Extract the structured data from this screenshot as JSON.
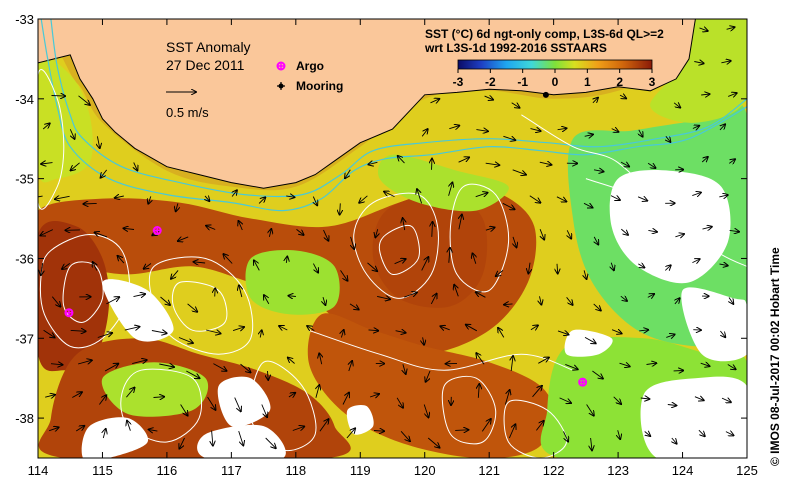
{
  "map": {
    "title": "SST Anomaly",
    "date": "27 Dec 2011",
    "vector_scale_label": "0.5 m/s",
    "product_line1": "SST (°C) 6d ngt-only comp, L3S-6d QL>=2",
    "product_line2": "wrt L3S-1d 1992-2016 SSTAARS",
    "credit": "© IMOS 08-Jul-2017 00:02 Hobart Time",
    "legend": {
      "argo": "Argo",
      "mooring": "Mooring"
    },
    "colors": {
      "land": "#fac79a",
      "coast": "#000000",
      "contour": "#ffffff",
      "shelf_contour": "#49c9d7",
      "argo": "#ff00ff",
      "mooring": "#000000",
      "nodata": "#ffffff"
    }
  },
  "chart_data": {
    "type": "heatmap",
    "xlim": [
      114,
      125
    ],
    "ylim": [
      -38.5,
      -33
    ],
    "x_ticks": [
      "114",
      "115",
      "116",
      "117",
      "118",
      "119",
      "120",
      "121",
      "122",
      "123",
      "124",
      "125"
    ],
    "y_ticks": [
      "-33",
      "-34",
      "-35",
      "-36",
      "-37",
      "-38"
    ],
    "colorbar": {
      "range": [
        -3,
        3
      ],
      "ticks": [
        "-3",
        "-2",
        "-1",
        "0",
        "1",
        "2",
        "3"
      ]
    },
    "argo_floats": [
      {
        "lon": 115.85,
        "lat": -35.65
      },
      {
        "lon": 114.48,
        "lat": -36.68
      },
      {
        "lon": 122.45,
        "lat": -37.55
      }
    ],
    "moorings": [
      {
        "lon": 121.88,
        "lat": -33.95
      }
    ],
    "coastline": [
      [
        114.0,
        -33.55
      ],
      [
        114.5,
        -33.45
      ],
      [
        114.55,
        -33.55
      ],
      [
        114.65,
        -33.75
      ],
      [
        114.85,
        -34.0
      ],
      [
        115.0,
        -34.25
      ],
      [
        115.2,
        -34.42
      ],
      [
        115.5,
        -34.62
      ],
      [
        116.0,
        -34.85
      ],
      [
        116.5,
        -34.95
      ],
      [
        117.0,
        -35.05
      ],
      [
        117.5,
        -35.12
      ],
      [
        118.0,
        -35.05
      ],
      [
        118.3,
        -34.95
      ],
      [
        118.65,
        -34.75
      ],
      [
        119.0,
        -34.55
      ],
      [
        119.5,
        -34.38
      ],
      [
        120.0,
        -33.95
      ],
      [
        120.5,
        -33.92
      ],
      [
        121.0,
        -33.88
      ],
      [
        121.5,
        -33.9
      ],
      [
        122.0,
        -33.95
      ],
      [
        122.5,
        -33.92
      ],
      [
        123.0,
        -33.85
      ],
      [
        123.5,
        -33.9
      ],
      [
        123.9,
        -33.75
      ],
      [
        124.1,
        -33.5
      ],
      [
        124.2,
        -33.0
      ]
    ],
    "anomaly_regions": [
      {
        "value": 0.8,
        "points": [
          [
            114,
            -33.55
          ],
          [
            114.6,
            -33.8
          ],
          [
            115.0,
            -34.3
          ],
          [
            116.0,
            -34.9
          ],
          [
            117.0,
            -35.1
          ],
          [
            118.0,
            -35.1
          ],
          [
            119.0,
            -34.6
          ],
          [
            120.0,
            -34.0
          ],
          [
            121.0,
            -33.9
          ],
          [
            122.0,
            -34.0
          ],
          [
            123.0,
            -33.9
          ],
          [
            124.1,
            -33.5
          ],
          [
            124.3,
            -33.0
          ],
          [
            125,
            -33.0
          ],
          [
            125,
            -38.5
          ],
          [
            114,
            -38.5
          ]
        ]
      },
      {
        "value": 2.4,
        "points": [
          [
            114.0,
            -35.4
          ],
          [
            115.0,
            -35.25
          ],
          [
            116.2,
            -35.3
          ],
          [
            117.3,
            -35.5
          ],
          [
            118.5,
            -35.6
          ],
          [
            119.6,
            -35.3
          ],
          [
            120.4,
            -35.1
          ],
          [
            121.2,
            -35.2
          ],
          [
            121.7,
            -35.6
          ],
          [
            121.6,
            -36.3
          ],
          [
            121.0,
            -36.9
          ],
          [
            120.0,
            -37.2
          ],
          [
            119.0,
            -37.0
          ],
          [
            118.2,
            -36.5
          ],
          [
            117.3,
            -36.3
          ],
          [
            116.4,
            -36.1
          ],
          [
            115.4,
            -36.2
          ],
          [
            114.6,
            -36.1
          ],
          [
            114.0,
            -36.0
          ]
        ]
      },
      {
        "value": 2.7,
        "points": [
          [
            114.0,
            -35.7
          ],
          [
            114.6,
            -35.6
          ],
          [
            115.0,
            -36.0
          ],
          [
            115.1,
            -36.6
          ],
          [
            114.9,
            -37.2
          ],
          [
            114.4,
            -37.4
          ],
          [
            114.0,
            -37.2
          ]
        ]
      },
      {
        "value": 2.5,
        "points": [
          [
            114.6,
            -37.2
          ],
          [
            115.6,
            -37.0
          ],
          [
            116.5,
            -37.2
          ],
          [
            117.4,
            -37.4
          ],
          [
            118.2,
            -37.7
          ],
          [
            118.6,
            -38.1
          ],
          [
            118.5,
            -38.5
          ],
          [
            114.4,
            -38.5
          ],
          [
            114.2,
            -38.0
          ]
        ]
      },
      {
        "value": 2.3,
        "points": [
          [
            118.4,
            -36.7
          ],
          [
            119.2,
            -36.9
          ],
          [
            120.0,
            -37.1
          ],
          [
            121.0,
            -37.3
          ],
          [
            121.8,
            -37.6
          ],
          [
            122.0,
            -38.0
          ],
          [
            121.7,
            -38.4
          ],
          [
            120.8,
            -38.5
          ],
          [
            119.6,
            -38.3
          ],
          [
            118.7,
            -37.9
          ],
          [
            118.2,
            -37.3
          ]
        ]
      },
      {
        "value": 2.5,
        "points": [
          [
            119.4,
            -35.4
          ],
          [
            120.3,
            -35.2
          ],
          [
            120.9,
            -35.5
          ],
          [
            120.9,
            -36.2
          ],
          [
            120.4,
            -36.6
          ],
          [
            119.6,
            -36.5
          ],
          [
            119.2,
            -36.0
          ]
        ]
      },
      {
        "value": 0.2,
        "points": [
          [
            117.3,
            -36.0
          ],
          [
            118.0,
            -35.9
          ],
          [
            118.6,
            -36.1
          ],
          [
            118.6,
            -36.6
          ],
          [
            117.9,
            -36.7
          ],
          [
            117.3,
            -36.5
          ]
        ]
      },
      {
        "value": 0.3,
        "points": [
          [
            115.0,
            -37.5
          ],
          [
            115.8,
            -37.3
          ],
          [
            116.6,
            -37.5
          ],
          [
            116.4,
            -37.9
          ],
          [
            115.4,
            -37.95
          ]
        ]
      },
      {
        "value": -0.2,
        "points": [
          [
            122.3,
            -34.5
          ],
          [
            123.2,
            -34.4
          ],
          [
            124.0,
            -34.3
          ],
          [
            125,
            -34.2
          ],
          [
            125,
            -37.0
          ],
          [
            124.2,
            -37.1
          ],
          [
            123.3,
            -36.9
          ],
          [
            122.6,
            -36.3
          ],
          [
            122.3,
            -35.5
          ]
        ]
      },
      {
        "value": 0.4,
        "points": [
          [
            123.6,
            -33.0
          ],
          [
            124.5,
            -33.0
          ],
          [
            125,
            -33.0
          ],
          [
            125,
            -34.0
          ],
          [
            124.2,
            -34.3
          ],
          [
            123.5,
            -34.1
          ],
          [
            123.9,
            -33.6
          ]
        ]
      },
      {
        "value": 0.1,
        "points": [
          [
            122.2,
            -37.1
          ],
          [
            123.4,
            -37.0
          ],
          [
            124.4,
            -37.2
          ],
          [
            125,
            -37.3
          ],
          [
            125,
            -38.5
          ],
          [
            122.1,
            -38.5
          ],
          [
            121.9,
            -37.9
          ]
        ]
      },
      {
        "value": 0.5,
        "points": [
          [
            114.0,
            -33.55
          ],
          [
            114.5,
            -33.7
          ],
          [
            114.8,
            -34.2
          ],
          [
            114.8,
            -34.8
          ],
          [
            114.3,
            -35.0
          ],
          [
            114.0,
            -34.9
          ]
        ]
      },
      {
        "value": 0.3,
        "points": [
          [
            119.5,
            -34.7
          ],
          [
            120.5,
            -34.9
          ],
          [
            121.3,
            -35.1
          ],
          [
            120.8,
            -35.4
          ],
          [
            119.9,
            -35.3
          ],
          [
            119.3,
            -35.0
          ]
        ]
      }
    ],
    "nodata_regions": [
      [
        [
          123.0,
          -35.0
        ],
        [
          123.8,
          -34.9
        ],
        [
          124.6,
          -35.1
        ],
        [
          124.7,
          -35.8
        ],
        [
          124.1,
          -36.3
        ],
        [
          123.3,
          -36.1
        ],
        [
          122.9,
          -35.6
        ]
      ],
      [
        [
          124.0,
          -36.4
        ],
        [
          124.8,
          -36.5
        ],
        [
          125,
          -36.6
        ],
        [
          125,
          -37.2
        ],
        [
          124.3,
          -37.2
        ]
      ],
      [
        [
          123.4,
          -37.7
        ],
        [
          124.2,
          -37.5
        ],
        [
          125,
          -37.6
        ],
        [
          125,
          -38.5
        ],
        [
          123.6,
          -38.5
        ]
      ],
      [
        [
          115.0,
          -36.3
        ],
        [
          115.7,
          -36.4
        ],
        [
          116.1,
          -36.9
        ],
        [
          115.5,
          -37.0
        ]
      ],
      [
        [
          116.8,
          -37.6
        ],
        [
          117.3,
          -37.5
        ],
        [
          117.6,
          -37.9
        ],
        [
          117.0,
          -38.1
        ]
      ],
      [
        [
          114.8,
          -38.1
        ],
        [
          115.4,
          -38.0
        ],
        [
          115.7,
          -38.3
        ],
        [
          115.1,
          -38.5
        ],
        [
          114.7,
          -38.5
        ]
      ],
      [
        [
          116.6,
          -38.2
        ],
        [
          117.5,
          -38.1
        ],
        [
          117.8,
          -38.5
        ],
        [
          116.6,
          -38.5
        ]
      ],
      [
        [
          118.8,
          -37.9
        ],
        [
          119.1,
          -37.85
        ],
        [
          119.2,
          -38.1
        ],
        [
          118.9,
          -38.2
        ]
      ],
      [
        [
          122.3,
          -36.9
        ],
        [
          122.9,
          -37.0
        ],
        [
          122.7,
          -37.2
        ],
        [
          122.2,
          -37.2
        ]
      ]
    ],
    "contours": [
      [
        [
          114.2,
          -35.9
        ],
        [
          114.8,
          -35.7
        ],
        [
          115.3,
          -35.9
        ],
        [
          115.4,
          -36.5
        ],
        [
          115.0,
          -37.0
        ],
        [
          114.5,
          -37.1
        ],
        [
          114.1,
          -36.7
        ],
        [
          114.05,
          -36.2
        ]
      ],
      [
        [
          114.5,
          -36.1
        ],
        [
          114.9,
          -36.1
        ],
        [
          115.0,
          -36.5
        ],
        [
          114.7,
          -36.8
        ],
        [
          114.4,
          -36.6
        ]
      ],
      [
        [
          115.8,
          -36.1
        ],
        [
          116.6,
          -36.0
        ],
        [
          117.2,
          -36.4
        ],
        [
          117.3,
          -37.0
        ],
        [
          116.8,
          -37.2
        ],
        [
          116.1,
          -37.0
        ],
        [
          115.8,
          -36.6
        ]
      ],
      [
        [
          116.2,
          -36.3
        ],
        [
          116.8,
          -36.4
        ],
        [
          116.9,
          -36.8
        ],
        [
          116.4,
          -36.9
        ],
        [
          116.1,
          -36.6
        ]
      ],
      [
        [
          119.2,
          -35.3
        ],
        [
          119.9,
          -35.2
        ],
        [
          120.2,
          -35.6
        ],
        [
          120.1,
          -36.2
        ],
        [
          119.6,
          -36.5
        ],
        [
          119.1,
          -36.2
        ],
        [
          118.9,
          -35.7
        ]
      ],
      [
        [
          119.4,
          -35.7
        ],
        [
          119.8,
          -35.6
        ],
        [
          119.9,
          -36.0
        ],
        [
          119.5,
          -36.2
        ],
        [
          119.3,
          -35.9
        ]
      ],
      [
        [
          120.6,
          -35.1
        ],
        [
          121.1,
          -35.2
        ],
        [
          121.3,
          -35.8
        ],
        [
          121.0,
          -36.4
        ],
        [
          120.5,
          -36.2
        ],
        [
          120.4,
          -35.6
        ]
      ],
      [
        [
          114.0,
          -33.7
        ],
        [
          114.3,
          -34.0
        ],
        [
          114.4,
          -34.6
        ],
        [
          114.3,
          -35.1
        ],
        [
          114.0,
          -35.3
        ]
      ],
      [
        [
          115.6,
          -37.4
        ],
        [
          116.4,
          -37.5
        ],
        [
          116.5,
          -38.0
        ],
        [
          116.0,
          -38.3
        ],
        [
          115.4,
          -38.1
        ],
        [
          115.3,
          -37.7
        ]
      ],
      [
        [
          117.5,
          -37.3
        ],
        [
          118.1,
          -37.6
        ],
        [
          118.3,
          -38.2
        ],
        [
          117.8,
          -38.4
        ],
        [
          117.3,
          -38.0
        ]
      ],
      [
        [
          120.3,
          -37.6
        ],
        [
          120.8,
          -37.5
        ],
        [
          121.1,
          -37.9
        ],
        [
          120.9,
          -38.3
        ],
        [
          120.4,
          -38.2
        ]
      ],
      [
        [
          121.3,
          -37.8
        ],
        [
          121.9,
          -37.9
        ],
        [
          122.2,
          -38.3
        ],
        [
          121.8,
          -38.5
        ],
        [
          121.3,
          -38.3
        ]
      ],
      [
        [
          122.5,
          -35.0
        ],
        [
          123.5,
          -35.3
        ],
        [
          124.5,
          -35.9
        ],
        [
          125,
          -36.1
        ]
      ],
      [
        [
          118.2,
          -36.9
        ],
        [
          119.3,
          -37.2
        ],
        [
          120.3,
          -37.4
        ],
        [
          121.5,
          -37.2
        ],
        [
          122.3,
          -37.4
        ]
      ],
      [
        [
          121.5,
          -34.2
        ],
        [
          122.3,
          -34.6
        ],
        [
          123.0,
          -34.8
        ],
        [
          123.6,
          -35.4
        ],
        [
          123.2,
          -35.9
        ]
      ]
    ],
    "shelf_contours": [
      [
        [
          114.05,
          -33.0
        ],
        [
          114.15,
          -33.5
        ],
        [
          114.3,
          -34.1
        ],
        [
          114.5,
          -34.6
        ],
        [
          115.1,
          -35.0
        ],
        [
          116.0,
          -35.2
        ],
        [
          117.0,
          -35.3
        ],
        [
          117.8,
          -35.4
        ],
        [
          118.4,
          -35.25
        ],
        [
          118.9,
          -34.9
        ],
        [
          119.4,
          -34.75
        ],
        [
          120.1,
          -34.7
        ],
        [
          121.0,
          -34.6
        ],
        [
          121.8,
          -34.65
        ],
        [
          122.5,
          -34.7
        ],
        [
          123.3,
          -34.6
        ],
        [
          124.1,
          -34.5
        ],
        [
          125,
          -34.1
        ]
      ],
      [
        [
          114.2,
          -33.0
        ],
        [
          114.3,
          -33.6
        ],
        [
          114.5,
          -34.2
        ],
        [
          114.7,
          -34.5
        ],
        [
          115.3,
          -34.85
        ],
        [
          116.2,
          -35.05
        ],
        [
          117.2,
          -35.2
        ],
        [
          118.1,
          -35.2
        ],
        [
          118.7,
          -34.95
        ],
        [
          119.2,
          -34.65
        ],
        [
          120.0,
          -34.55
        ],
        [
          121.0,
          -34.5
        ],
        [
          121.9,
          -34.55
        ],
        [
          122.7,
          -34.6
        ],
        [
          123.6,
          -34.5
        ],
        [
          124.4,
          -34.35
        ],
        [
          125,
          -34.0
        ]
      ]
    ]
  }
}
